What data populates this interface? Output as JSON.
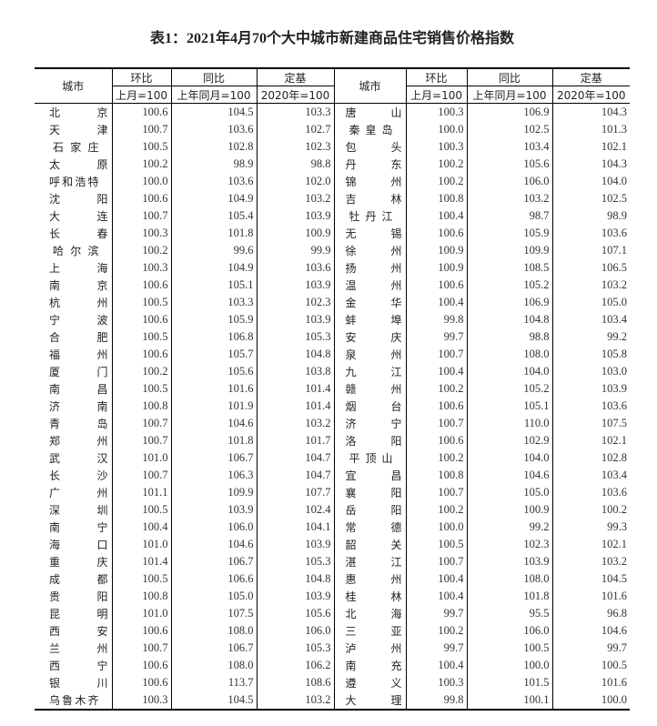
{
  "title": "表1：2021年4月70个大中城市新建商品住宅销售价格指数",
  "header": {
    "city": "城市",
    "mom": "环比",
    "yoy": "同比",
    "base": "定基",
    "mom_sub": "上月=100",
    "yoy_sub": "上年同月=100",
    "base_sub": "2020年=100"
  },
  "left": [
    [
      "北京",
      "100.6",
      "104.5",
      "103.3"
    ],
    [
      "天津",
      "100.7",
      "103.6",
      "102.7"
    ],
    [
      "石家庄",
      "100.5",
      "102.8",
      "102.3"
    ],
    [
      "太原",
      "100.2",
      "98.9",
      "98.8"
    ],
    [
      "呼和浩特",
      "100.0",
      "103.6",
      "102.0"
    ],
    [
      "沈阳",
      "100.6",
      "104.9",
      "103.2"
    ],
    [
      "大连",
      "100.7",
      "105.4",
      "103.9"
    ],
    [
      "长春",
      "100.3",
      "101.8",
      "100.9"
    ],
    [
      "哈尔滨",
      "100.2",
      "99.6",
      "99.9"
    ],
    [
      "上海",
      "100.3",
      "104.9",
      "103.6"
    ],
    [
      "南京",
      "100.6",
      "105.1",
      "103.9"
    ],
    [
      "杭州",
      "100.5",
      "103.3",
      "102.3"
    ],
    [
      "宁波",
      "100.6",
      "105.9",
      "103.9"
    ],
    [
      "合肥",
      "100.5",
      "106.8",
      "105.3"
    ],
    [
      "福州",
      "100.6",
      "105.7",
      "104.8"
    ],
    [
      "厦门",
      "100.2",
      "105.6",
      "103.8"
    ],
    [
      "南昌",
      "100.5",
      "101.6",
      "101.4"
    ],
    [
      "济南",
      "100.8",
      "101.9",
      "101.4"
    ],
    [
      "青岛",
      "100.7",
      "104.6",
      "103.2"
    ],
    [
      "郑州",
      "100.7",
      "101.8",
      "101.7"
    ],
    [
      "武汉",
      "101.0",
      "106.7",
      "104.7"
    ],
    [
      "长沙",
      "100.7",
      "106.3",
      "104.7"
    ],
    [
      "广州",
      "101.1",
      "109.9",
      "107.7"
    ],
    [
      "深圳",
      "100.5",
      "103.9",
      "102.4"
    ],
    [
      "南宁",
      "100.4",
      "106.0",
      "104.1"
    ],
    [
      "海口",
      "101.0",
      "104.6",
      "103.9"
    ],
    [
      "重庆",
      "101.4",
      "106.7",
      "105.3"
    ],
    [
      "成都",
      "100.5",
      "106.6",
      "104.8"
    ],
    [
      "贵阳",
      "100.8",
      "105.0",
      "103.9"
    ],
    [
      "昆明",
      "101.0",
      "107.5",
      "105.6"
    ],
    [
      "西安",
      "100.6",
      "108.0",
      "106.0"
    ],
    [
      "兰州",
      "100.7",
      "106.7",
      "105.3"
    ],
    [
      "西宁",
      "100.6",
      "108.0",
      "106.2"
    ],
    [
      "银川",
      "100.6",
      "113.7",
      "108.6"
    ],
    [
      "乌鲁木齐",
      "100.3",
      "104.5",
      "103.2"
    ]
  ],
  "right": [
    [
      "唐山",
      "100.3",
      "106.9",
      "104.3"
    ],
    [
      "秦皇岛",
      "100.0",
      "102.5",
      "101.3"
    ],
    [
      "包头",
      "100.3",
      "103.4",
      "102.1"
    ],
    [
      "丹东",
      "100.2",
      "105.6",
      "104.3"
    ],
    [
      "锦州",
      "100.2",
      "106.0",
      "104.0"
    ],
    [
      "吉林",
      "100.8",
      "103.2",
      "102.5"
    ],
    [
      "牡丹江",
      "100.4",
      "98.7",
      "98.9"
    ],
    [
      "无锡",
      "100.6",
      "105.9",
      "103.6"
    ],
    [
      "徐州",
      "100.9",
      "109.9",
      "107.1"
    ],
    [
      "扬州",
      "100.9",
      "108.5",
      "106.5"
    ],
    [
      "温州",
      "100.6",
      "105.2",
      "103.2"
    ],
    [
      "金华",
      "100.4",
      "106.9",
      "105.0"
    ],
    [
      "蚌埠",
      "99.8",
      "104.8",
      "103.4"
    ],
    [
      "安庆",
      "99.7",
      "98.8",
      "99.2"
    ],
    [
      "泉州",
      "100.7",
      "108.0",
      "105.8"
    ],
    [
      "九江",
      "100.4",
      "104.0",
      "103.0"
    ],
    [
      "赣州",
      "100.2",
      "105.2",
      "103.9"
    ],
    [
      "烟台",
      "100.6",
      "105.1",
      "103.6"
    ],
    [
      "济宁",
      "100.7",
      "110.0",
      "107.5"
    ],
    [
      "洛阳",
      "100.6",
      "102.9",
      "102.1"
    ],
    [
      "平顶山",
      "100.2",
      "104.0",
      "102.8"
    ],
    [
      "宜昌",
      "100.8",
      "104.6",
      "103.4"
    ],
    [
      "襄阳",
      "100.7",
      "105.0",
      "103.6"
    ],
    [
      "岳阳",
      "100.2",
      "100.9",
      "100.2"
    ],
    [
      "常德",
      "100.0",
      "99.2",
      "99.3"
    ],
    [
      "韶关",
      "100.5",
      "102.3",
      "102.1"
    ],
    [
      "湛江",
      "100.7",
      "103.9",
      "103.2"
    ],
    [
      "惠州",
      "100.4",
      "108.0",
      "104.5"
    ],
    [
      "桂林",
      "100.4",
      "101.8",
      "101.6"
    ],
    [
      "北海",
      "99.7",
      "95.5",
      "96.8"
    ],
    [
      "三亚",
      "100.2",
      "106.0",
      "104.6"
    ],
    [
      "泸州",
      "99.7",
      "100.5",
      "99.7"
    ],
    [
      "南充",
      "100.4",
      "100.0",
      "100.5"
    ],
    [
      "遵义",
      "100.3",
      "101.5",
      "101.6"
    ],
    [
      "大理",
      "99.8",
      "100.1",
      "100.0"
    ]
  ]
}
